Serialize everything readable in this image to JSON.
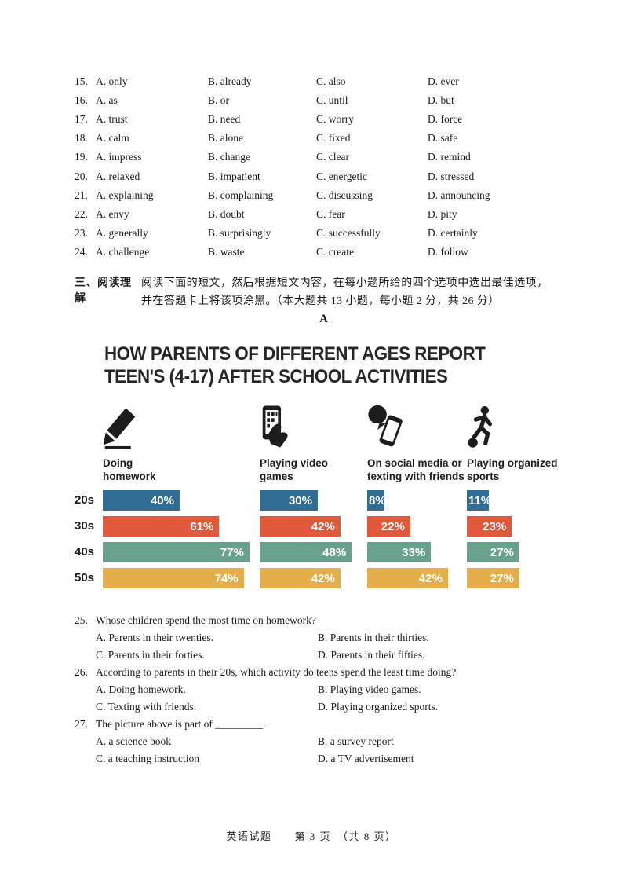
{
  "cloze": {
    "rows": [
      {
        "cells": [
          "15.",
          "A. only",
          "B. already",
          "C. also",
          "D. ever"
        ]
      },
      {
        "cells": [
          "16.",
          "A. as",
          "B. or",
          "C. until",
          "D. but"
        ]
      },
      {
        "cells": [
          "17.",
          "A. trust",
          "B. need",
          "C. worry",
          "D. force"
        ]
      },
      {
        "cells": [
          "18.",
          "A. calm",
          "B. alone",
          "C. fixed",
          "D. safe"
        ]
      },
      {
        "cells": [
          "19.",
          "A. impress",
          "B. change",
          "C. clear",
          "D. remind"
        ]
      },
      {
        "cells": [
          "20.",
          "A. relaxed",
          "B. impatient",
          "C. energetic",
          "D. stressed"
        ]
      },
      {
        "cells": [
          "21.",
          "A. explaining",
          "B. complaining",
          "C. discussing",
          "D. announcing"
        ]
      },
      {
        "cells": [
          "22.",
          "A. envy",
          "B. doubt",
          "C. fear",
          "D. pity"
        ]
      },
      {
        "cells": [
          "23.",
          "A. generally",
          "B. surprisingly",
          "C. successfully",
          "D. certainly"
        ]
      },
      {
        "cells": [
          "24.",
          "A. challenge",
          "B. waste",
          "C. create",
          "D. follow"
        ]
      }
    ]
  },
  "reading": {
    "section_label": "三、阅读理解",
    "instructions_line1": "阅读下面的短文，然后根据短文内容，在每小题所给的四个选项中选出最佳选项，",
    "instructions_line2": "并在答题卡上将该项涂黑。（本大题共 13 小题，每小题 2 分，共 26 分）",
    "passage_label": "A",
    "questions": [
      {
        "number": "25.",
        "text": "Whose children spend the most time on homework?",
        "options": [
          "A. Parents in their twenties.",
          "B. Parents in their thirties.",
          "C. Parents in their forties.",
          "D. Parents in their fifties."
        ]
      },
      {
        "number": "26.",
        "text": "According to parents in their 20s, which activity do teens spend the least time doing?",
        "options": [
          "A. Doing homework.",
          "B. Playing video games.",
          "C. Texting with friends.",
          "D. Playing organized sports."
        ]
      },
      {
        "number": "27.",
        "text": "The picture above is part of _________.",
        "options": [
          "A. a science book",
          "B. a survey report",
          "C. a teaching instruction",
          "D. a TV advertisement"
        ]
      }
    ]
  },
  "chart_data": {
    "type": "bar",
    "orientation": "horizontal",
    "title": "HOW PARENTS OF DIFFERENT AGES REPORT TEEN'S (4-17) AFTER SCHOOL ACTIVITIES",
    "title_lines": [
      "HOW PARENTS OF DIFFERENT AGES REPORT",
      "TEEN'S (4-17) AFTER SCHOOL ACTIVITIES"
    ],
    "categories": [
      "Doing homework",
      "Playing video games",
      "On social media or texting with friends",
      "Playing organized sports"
    ],
    "category_icons": [
      "pencil-icon",
      "phone-hand-icon",
      "chat-phone-icon",
      "soccer-player-icon"
    ],
    "series": [
      {
        "name": "20s",
        "color": "#2f6d94",
        "values": [
          40,
          30,
          8,
          11
        ]
      },
      {
        "name": "30s",
        "color": "#e0593a",
        "values": [
          61,
          42,
          22,
          23
        ]
      },
      {
        "name": "40s",
        "color": "#6aa18d",
        "values": [
          77,
          48,
          33,
          27
        ]
      },
      {
        "name": "50s",
        "color": "#e4af4a",
        "values": [
          74,
          42,
          42,
          27
        ]
      }
    ],
    "unit": "%",
    "value_labels": true,
    "legend": "none",
    "grid": false
  },
  "footer": {
    "text": "英语试题　　第 3 页　（共 8 页）"
  }
}
